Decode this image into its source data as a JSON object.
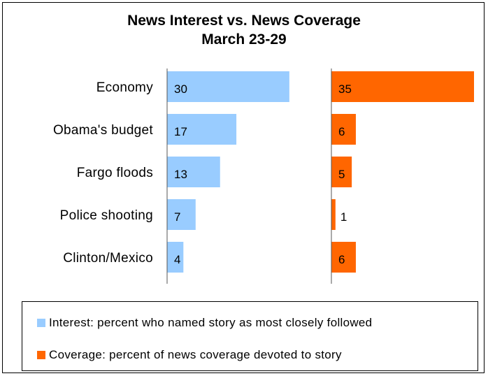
{
  "title": {
    "line1": "News Interest vs. News Coverage",
    "line2": "March 23-29"
  },
  "colors": {
    "interest": "#99ccff",
    "coverage": "#ff6600"
  },
  "legend": {
    "interest": "Interest: percent who named story as most closely followed",
    "coverage": "Coverage: percent of news coverage devoted to story"
  },
  "chart_data": {
    "type": "bar",
    "orientation": "horizontal",
    "categories": [
      "Economy",
      "Obama's budget",
      "Fargo floods",
      "Police shooting",
      "Clinton/Mexico"
    ],
    "series": [
      {
        "name": "Interest: percent who named story as most closely followed",
        "values": [
          30,
          17,
          13,
          7,
          4
        ],
        "labels": [
          "30",
          "17",
          "13",
          "7",
          "4"
        ]
      },
      {
        "name": "Coverage: percent of news coverage devoted to story",
        "values": [
          35,
          6,
          5,
          1,
          6
        ],
        "labels": [
          "35",
          "6",
          "5",
          "1",
          "6"
        ]
      }
    ],
    "xlim": [
      0,
      35
    ],
    "grid": false,
    "legend_position": "bottom"
  }
}
